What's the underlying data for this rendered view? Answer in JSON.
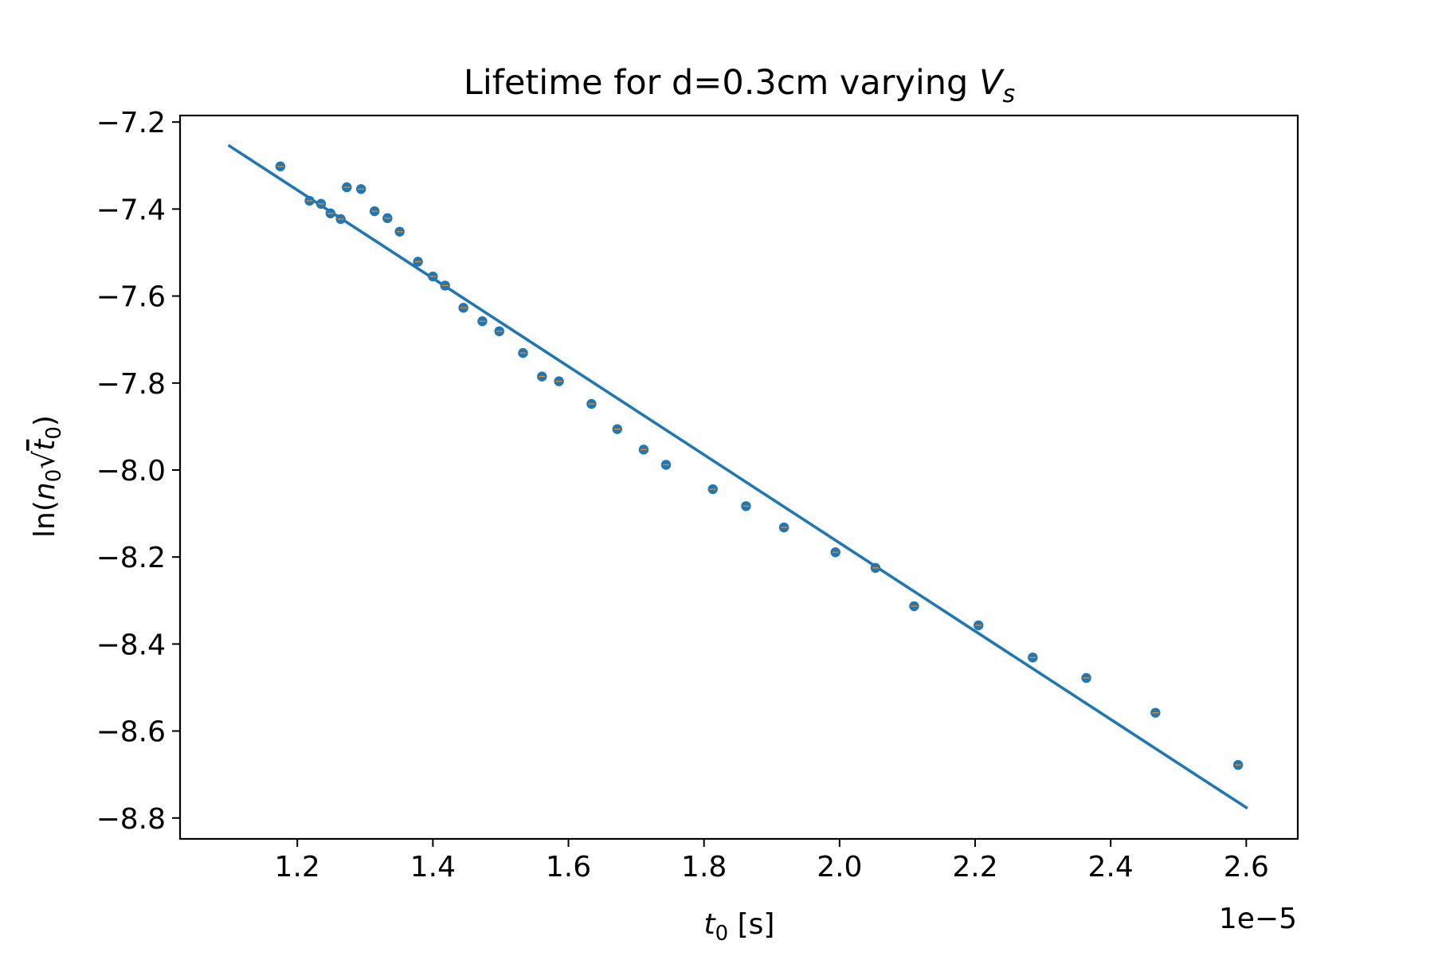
{
  "chart_data": {
    "type": "scatter",
    "title_main": "Lifetime for d=0.3cm varying ",
    "title_var": "V",
    "title_sub": "s",
    "xlabel_var": "t",
    "xlabel_sub": "0",
    "xlabel_units": " [s]",
    "ylabel_open": "ln(",
    "ylabel_n": "n",
    "ylabel_sub0": "0",
    "ylabel_sqrt": "√",
    "ylabel_t": "t",
    "ylabel_tsub": "0",
    "ylabel_close": ")",
    "x_offset_label": "1e−5",
    "xlim": [
      1.027,
      2.676
    ],
    "ylim": [
      -8.848,
      -7.185
    ],
    "x_ticks": [
      1.2,
      1.4,
      1.6,
      1.8,
      2.0,
      2.2,
      2.4,
      2.6
    ],
    "x_tick_labels": [
      "1.2",
      "1.4",
      "1.6",
      "1.8",
      "2.0",
      "2.2",
      "2.4",
      "2.6"
    ],
    "y_ticks": [
      -7.2,
      -7.4,
      -7.6,
      -7.8,
      -8.0,
      -8.2,
      -8.4,
      -8.6,
      -8.8
    ],
    "y_tick_labels": [
      "−7.2",
      "−7.4",
      "−7.6",
      "−7.8",
      "−8.0",
      "−8.2",
      "−8.4",
      "−8.6",
      "−8.8"
    ],
    "grid": false,
    "colors": {
      "points": "#1f77b4",
      "fit": "#1f77b4",
      "errorbar": "#ff7f0e"
    },
    "series": [
      {
        "kind": "points",
        "x": [
          1.175,
          1.218,
          1.235,
          1.249,
          1.264,
          1.273,
          1.294,
          1.314,
          1.333,
          1.351,
          1.378,
          1.4,
          1.418,
          1.445,
          1.473,
          1.498,
          1.533,
          1.561,
          1.586,
          1.634,
          1.672,
          1.711,
          1.744,
          1.813,
          1.862,
          1.918,
          1.994,
          2.053,
          2.11,
          2.205,
          2.285,
          2.364,
          2.466,
          2.588
        ],
        "y": [
          -7.302,
          -7.381,
          -7.388,
          -7.41,
          -7.423,
          -7.35,
          -7.354,
          -7.405,
          -7.421,
          -7.452,
          -7.521,
          -7.555,
          -7.576,
          -7.627,
          -7.658,
          -7.681,
          -7.731,
          -7.785,
          -7.796,
          -7.848,
          -7.906,
          -7.953,
          -7.988,
          -8.044,
          -8.083,
          -8.132,
          -8.189,
          -8.225,
          -8.313,
          -8.357,
          -8.431,
          -8.478,
          -8.558,
          -8.678
        ]
      },
      {
        "kind": "fit",
        "x": [
          1.1,
          2.6
        ],
        "y": [
          -7.255,
          -8.776
        ]
      }
    ]
  }
}
